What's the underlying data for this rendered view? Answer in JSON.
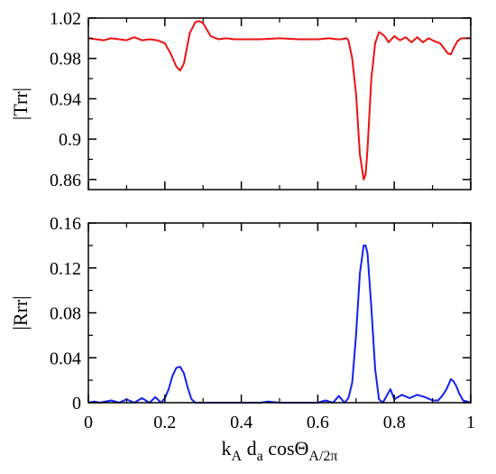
{
  "chart_data": [
    {
      "type": "line",
      "ylabel": "|Trr|",
      "xlim": [
        0,
        1
      ],
      "ylim": [
        0.85,
        1.02
      ],
      "xticks": [
        0,
        0.2,
        0.4,
        0.6,
        0.8,
        1
      ],
      "xtick_labels": [],
      "yticks": [
        0.86,
        0.9,
        0.94,
        0.98,
        1.02
      ],
      "ytick_labels": [
        "0.86",
        "0.9",
        "0.94",
        "0.98",
        "1.02"
      ],
      "color": "#ee1111",
      "series": [
        {
          "x": [
            0,
            0.02,
            0.04,
            0.06,
            0.08,
            0.1,
            0.12,
            0.14,
            0.16,
            0.18,
            0.2,
            0.215,
            0.23,
            0.24,
            0.25,
            0.265,
            0.28,
            0.29,
            0.3,
            0.32,
            0.34,
            0.36,
            0.38,
            0.4,
            0.45,
            0.5,
            0.55,
            0.6,
            0.63,
            0.65,
            0.66,
            0.675,
            0.68,
            0.69,
            0.7,
            0.71,
            0.72,
            0.725,
            0.73,
            0.74,
            0.75,
            0.76,
            0.765,
            0.775,
            0.785,
            0.8,
            0.815,
            0.83,
            0.845,
            0.86,
            0.875,
            0.89,
            0.905,
            0.92,
            0.93,
            0.94,
            0.948,
            0.955,
            0.965,
            0.975,
            0.985,
            1.0
          ],
          "y": [
            1.0,
            0.999,
            0.998,
            1.0,
            0.999,
            0.998,
            1.001,
            0.998,
            0.999,
            0.998,
            0.995,
            0.985,
            0.972,
            0.968,
            0.975,
            1.005,
            1.016,
            1.017,
            1.015,
            1.002,
            0.999,
            1.0,
            0.999,
            0.999,
            0.999,
            1.0,
            0.999,
            0.999,
            1.0,
            0.999,
            0.999,
            1.0,
            0.998,
            0.98,
            0.945,
            0.885,
            0.86,
            0.865,
            0.89,
            0.96,
            0.995,
            1.006,
            1.005,
            1.002,
            0.996,
            1.002,
            0.998,
            1.001,
            0.996,
            1.001,
            0.996,
            1.0,
            0.997,
            0.995,
            0.99,
            0.985,
            0.984,
            0.99,
            0.997,
            1.0,
            1.0,
            1.0
          ]
        }
      ]
    },
    {
      "type": "line",
      "xlabel": "k_A d_a cosΘ_A/2π",
      "ylabel": "|Rrr|",
      "xlim": [
        0,
        1
      ],
      "ylim": [
        0,
        0.16
      ],
      "xticks": [
        0,
        0.2,
        0.4,
        0.6,
        0.8,
        1
      ],
      "xtick_labels": [
        "0",
        "0.2",
        "0.4",
        "0.6",
        "0.8",
        "1"
      ],
      "yticks": [
        0,
        0.04,
        0.08,
        0.12,
        0.16
      ],
      "ytick_labels": [
        "0",
        "0.04",
        "0.08",
        "0.12",
        "0.16"
      ],
      "color": "#1122ee",
      "series": [
        {
          "x": [
            0,
            0.015,
            0.03,
            0.045,
            0.06,
            0.08,
            0.1,
            0.12,
            0.14,
            0.16,
            0.175,
            0.19,
            0.2,
            0.21,
            0.22,
            0.23,
            0.24,
            0.25,
            0.26,
            0.27,
            0.28,
            0.3,
            0.35,
            0.4,
            0.45,
            0.47,
            0.5,
            0.55,
            0.6,
            0.62,
            0.64,
            0.655,
            0.67,
            0.68,
            0.69,
            0.7,
            0.71,
            0.72,
            0.725,
            0.73,
            0.74,
            0.75,
            0.76,
            0.77,
            0.78,
            0.79,
            0.8,
            0.82,
            0.84,
            0.86,
            0.88,
            0.9,
            0.915,
            0.925,
            0.935,
            0.942,
            0.948,
            0.955,
            0.962,
            0.97,
            0.98,
            1.0
          ],
          "y": [
            0.0,
            0.001,
            0.0,
            0.001,
            0.002,
            0.0,
            0.003,
            0.0,
            0.004,
            0.0,
            0.005,
            0.0,
            0.004,
            0.012,
            0.024,
            0.031,
            0.032,
            0.026,
            0.013,
            0.003,
            0.0,
            0.0,
            0.0,
            0.0,
            0.0,
            0.001,
            0.0,
            0.0,
            0.0,
            0.002,
            0.0,
            0.006,
            0.0,
            0.004,
            0.018,
            0.06,
            0.115,
            0.14,
            0.14,
            0.133,
            0.085,
            0.03,
            0.003,
            0.0,
            0.006,
            0.012,
            0.003,
            0.007,
            0.004,
            0.007,
            0.005,
            0.002,
            0.002,
            0.006,
            0.011,
            0.016,
            0.021,
            0.019,
            0.015,
            0.008,
            0.002,
            0.0
          ]
        }
      ]
    }
  ]
}
